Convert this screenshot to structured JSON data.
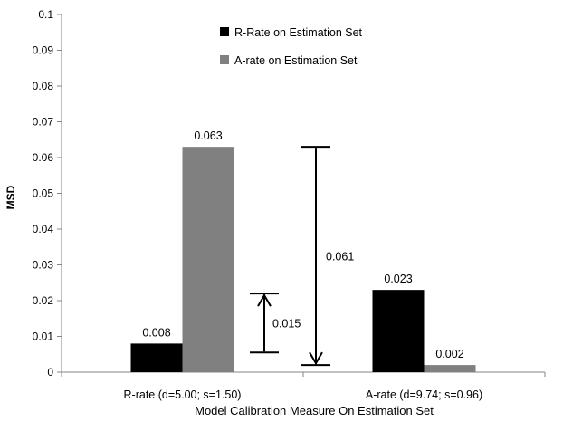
{
  "chart_data": {
    "type": "bar",
    "categories": [
      "R-rate (d=5.00; s=1.50)",
      "A-rate (d=9.74; s=0.96)"
    ],
    "series": [
      {
        "name": "R-Rate on Estimation Set",
        "values": [
          0.008,
          0.023
        ],
        "labels": [
          "0.008",
          "0.023"
        ],
        "color": "#000000"
      },
      {
        "name": "A-rate on Estimation Set",
        "values": [
          0.063,
          0.002
        ],
        "labels": [
          "0.063",
          "0.002"
        ],
        "color": "#808080"
      }
    ],
    "xlabel": "Model Calibration Measure On Estimation Set",
    "ylabel": "MSD",
    "ylim": [
      0,
      0.1
    ],
    "yticks": [
      "0",
      "0.01",
      "0.02",
      "0.03",
      "0.04",
      "0.05",
      "0.06",
      "0.07",
      "0.08",
      "0.09",
      "0.1"
    ],
    "grid": false,
    "legend_position": "top-center",
    "annotations": [
      {
        "text": "0.015",
        "from": 0.0055,
        "to": 0.022,
        "arrow": "up",
        "category_index": 0
      },
      {
        "text": "0.061",
        "from": 0.002,
        "to": 0.063,
        "arrow": "down",
        "category_index": 0.5
      }
    ]
  }
}
